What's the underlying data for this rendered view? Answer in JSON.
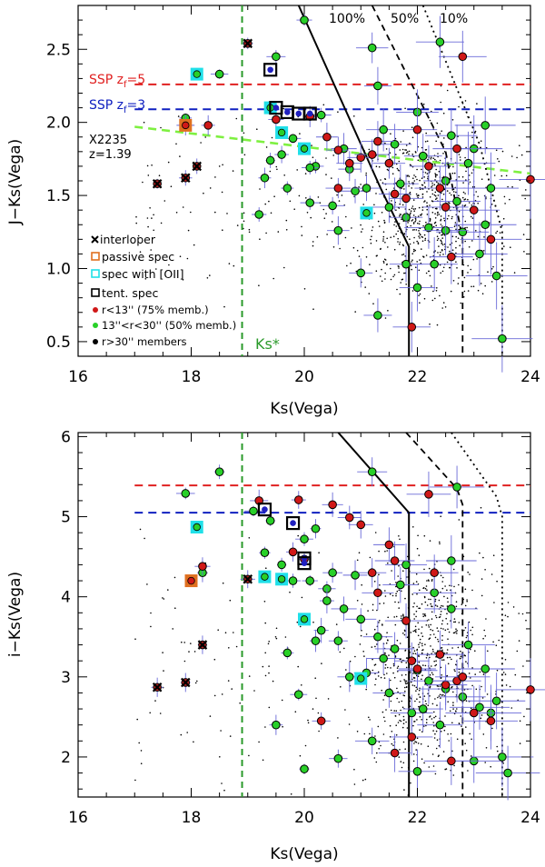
{
  "figure": {
    "label": "Two-panel colour-magnitude diagram of the X2235 cluster field"
  },
  "colors": {
    "red": "#d01818",
    "green": "#28d028",
    "cyan": "#20e0e8",
    "orange": "#e07020",
    "blue_err": "#6a6ad8",
    "ssp5": "#e02020",
    "ssp3": "#1020c0",
    "seq": "#7ef040",
    "kslim": "#2a9a2a"
  },
  "chart_data": [
    {
      "type": "scatter",
      "panel": "top",
      "xlabel": "Ks(Vega)",
      "ylabel": "J−Ks(Vega)",
      "xlim": [
        16,
        24
      ],
      "ylim": [
        0.4,
        2.8
      ],
      "xticks": [
        "16",
        "18",
        "20",
        "22",
        "24"
      ],
      "yticks": [
        "0.5",
        "1.0",
        "1.5",
        "2.0",
        "2.5"
      ],
      "completeness_labels": [
        "100%",
        "50%",
        "10%"
      ],
      "ssp_lines": [
        {
          "label": "SSP z_f=5",
          "y": 2.26,
          "color": "#e02020"
        },
        {
          "label": "SSP z_f=3",
          "y": 2.09,
          "color": "#1020c0"
        }
      ],
      "red_sequence": {
        "x": [
          17.0,
          24.0
        ],
        "y": [
          1.97,
          1.65
        ]
      },
      "cluster_label": [
        "X2235",
        "z=1.39"
      ],
      "ks_limit": {
        "x": 18.9,
        "label": "Ks*"
      },
      "completeness_100": {
        "x": [
          19.9,
          21.35,
          21.85,
          21.85
        ],
        "y": [
          2.8,
          1.55,
          1.15,
          0.4
        ]
      },
      "completeness_50": {
        "x": [
          21.2,
          22.5,
          22.8,
          22.8
        ],
        "y": [
          2.8,
          1.8,
          1.2,
          0.4
        ]
      },
      "completeness_10": {
        "x": [
          22.1,
          23.1,
          23.5,
          23.5
        ],
        "y": [
          2.8,
          1.85,
          1.25,
          0.4
        ]
      },
      "legend": [
        "interloper",
        "passive spec",
        "spec with [OII]",
        "tent. spec",
        "r<13'' (75% memb.)",
        "13''<r<30'' (50% memb.)",
        "r>30'' members"
      ],
      "red_points": [
        [
          17.9,
          1.98
        ],
        [
          18.3,
          1.98
        ],
        [
          19.5,
          2.02
        ],
        [
          20.1,
          2.04
        ],
        [
          20.4,
          1.9
        ],
        [
          20.6,
          1.81
        ],
        [
          20.8,
          1.72
        ],
        [
          21.0,
          1.76
        ],
        [
          21.2,
          1.78
        ],
        [
          21.3,
          1.87
        ],
        [
          21.5,
          1.72
        ],
        [
          21.6,
          1.51
        ],
        [
          21.8,
          1.48
        ],
        [
          21.9,
          0.6
        ],
        [
          22.0,
          1.95
        ],
        [
          22.2,
          1.7
        ],
        [
          22.4,
          1.55
        ],
        [
          22.5,
          1.42
        ],
        [
          22.6,
          1.08
        ],
        [
          22.8,
          2.45
        ],
        [
          23.0,
          1.4
        ],
        [
          23.3,
          1.2
        ],
        [
          24.0,
          1.61
        ],
        [
          20.6,
          1.55
        ],
        [
          22.7,
          1.82
        ]
      ],
      "green_points": [
        [
          17.9,
          2.03
        ],
        [
          18.5,
          2.33
        ],
        [
          19.6,
          1.78
        ],
        [
          19.5,
          2.45
        ],
        [
          19.3,
          1.62
        ],
        [
          19.7,
          1.55
        ],
        [
          19.8,
          1.89
        ],
        [
          20.0,
          2.7
        ],
        [
          20.2,
          1.7
        ],
        [
          20.1,
          1.45
        ],
        [
          20.3,
          2.05
        ],
        [
          20.5,
          1.43
        ],
        [
          20.6,
          1.26
        ],
        [
          20.7,
          1.82
        ],
        [
          20.8,
          1.68
        ],
        [
          20.9,
          1.53
        ],
        [
          21.0,
          0.97
        ],
        [
          21.1,
          1.55
        ],
        [
          21.2,
          2.51
        ],
        [
          21.3,
          2.25
        ],
        [
          21.4,
          1.95
        ],
        [
          21.5,
          1.42
        ],
        [
          21.6,
          1.85
        ],
        [
          21.7,
          1.58
        ],
        [
          21.8,
          1.35
        ],
        [
          22.0,
          2.07
        ],
        [
          22.1,
          1.77
        ],
        [
          22.2,
          1.28
        ],
        [
          22.3,
          1.03
        ],
        [
          22.4,
          2.55
        ],
        [
          22.5,
          1.6
        ],
        [
          22.6,
          1.91
        ],
        [
          22.7,
          1.46
        ],
        [
          22.8,
          1.25
        ],
        [
          22.9,
          1.72
        ],
        [
          23.0,
          1.82
        ],
        [
          23.1,
          1.1
        ],
        [
          23.2,
          1.98
        ],
        [
          23.3,
          1.55
        ],
        [
          23.4,
          0.95
        ],
        [
          23.5,
          0.52
        ],
        [
          22.0,
          0.87
        ],
        [
          21.3,
          0.68
        ],
        [
          22.5,
          1.26
        ],
        [
          21.8,
          1.03
        ],
        [
          23.2,
          1.3
        ],
        [
          19.2,
          1.37
        ],
        [
          19.4,
          1.74
        ],
        [
          20.1,
          1.69
        ]
      ],
      "interlopers": [
        [
          17.4,
          1.58
        ],
        [
          17.9,
          1.62
        ],
        [
          18.1,
          1.7
        ],
        [
          19.0,
          2.54
        ]
      ],
      "passive_spec": [
        [
          17.9,
          1.98
        ]
      ],
      "oii_spec": [
        [
          18.1,
          2.33
        ],
        [
          19.4,
          2.1
        ],
        [
          19.6,
          1.93
        ],
        [
          20.0,
          1.82
        ],
        [
          21.1,
          1.38
        ]
      ],
      "tent_spec": [
        [
          19.4,
          2.36
        ],
        [
          19.7,
          2.07
        ],
        [
          19.9,
          2.06
        ],
        [
          20.1,
          2.06
        ],
        [
          19.5,
          2.1
        ]
      ]
    },
    {
      "type": "scatter",
      "panel": "bottom",
      "xlabel": "Ks(Vega)",
      "ylabel": "i−Ks(Vega)",
      "xlim": [
        16,
        24
      ],
      "ylim": [
        1.5,
        6.05
      ],
      "xticks": [
        "16",
        "18",
        "20",
        "22",
        "24"
      ],
      "yticks": [
        "2",
        "3",
        "4",
        "5",
        "6"
      ],
      "ssp_lines": [
        {
          "y": 5.39,
          "color": "#e02020"
        },
        {
          "y": 5.05,
          "color": "#1020c0"
        }
      ],
      "ks_limit": {
        "x": 18.9
      },
      "completeness_100": {
        "x": [
          20.6,
          21.85,
          21.85
        ],
        "y": [
          6.05,
          5.05,
          1.5
        ]
      },
      "completeness_50": {
        "x": [
          21.8,
          22.7,
          22.8,
          22.8
        ],
        "y": [
          6.05,
          5.35,
          5.15,
          1.5
        ]
      },
      "completeness_10": {
        "x": [
          22.6,
          23.4,
          23.5,
          23.5
        ],
        "y": [
          6.05,
          5.25,
          5.0,
          1.5
        ]
      },
      "red_points": [
        [
          18.2,
          4.38
        ],
        [
          19.2,
          5.2
        ],
        [
          19.8,
          4.56
        ],
        [
          19.9,
          5.21
        ],
        [
          20.0,
          4.47
        ],
        [
          20.5,
          5.15
        ],
        [
          20.8,
          4.99
        ],
        [
          21.0,
          4.9
        ],
        [
          21.2,
          4.3
        ],
        [
          21.3,
          4.05
        ],
        [
          21.5,
          4.65
        ],
        [
          21.6,
          4.45
        ],
        [
          21.8,
          3.7
        ],
        [
          21.9,
          3.2
        ],
        [
          22.0,
          3.1
        ],
        [
          22.2,
          5.28
        ],
        [
          22.3,
          4.3
        ],
        [
          22.4,
          3.28
        ],
        [
          22.5,
          2.9
        ],
        [
          22.7,
          2.95
        ],
        [
          22.8,
          3.0
        ],
        [
          23.0,
          2.55
        ],
        [
          23.3,
          2.45
        ],
        [
          24.0,
          2.84
        ],
        [
          20.3,
          2.45
        ],
        [
          21.9,
          2.25
        ],
        [
          21.6,
          2.05
        ],
        [
          22.6,
          1.95
        ]
      ],
      "green_points": [
        [
          17.9,
          5.29
        ],
        [
          18.5,
          5.56
        ],
        [
          18.2,
          4.3
        ],
        [
          19.1,
          5.07
        ],
        [
          19.3,
          4.55
        ],
        [
          19.4,
          4.95
        ],
        [
          19.6,
          4.4
        ],
        [
          19.7,
          3.3
        ],
        [
          19.8,
          4.2
        ],
        [
          19.9,
          2.78
        ],
        [
          20.0,
          4.72
        ],
        [
          20.1,
          4.2
        ],
        [
          20.2,
          4.85
        ],
        [
          20.3,
          3.58
        ],
        [
          20.4,
          4.1
        ],
        [
          20.5,
          4.3
        ],
        [
          20.6,
          3.45
        ],
        [
          20.7,
          3.85
        ],
        [
          20.8,
          3.0
        ],
        [
          20.9,
          4.27
        ],
        [
          21.0,
          3.72
        ],
        [
          21.1,
          3.05
        ],
        [
          21.2,
          5.56
        ],
        [
          21.3,
          3.5
        ],
        [
          21.4,
          3.23
        ],
        [
          21.5,
          2.8
        ],
        [
          21.6,
          3.35
        ],
        [
          21.7,
          4.15
        ],
        [
          21.8,
          4.4
        ],
        [
          21.9,
          2.55
        ],
        [
          22.0,
          3.08
        ],
        [
          22.1,
          2.6
        ],
        [
          22.2,
          2.95
        ],
        [
          22.3,
          4.05
        ],
        [
          22.4,
          2.4
        ],
        [
          22.5,
          2.85
        ],
        [
          22.6,
          3.85
        ],
        [
          22.7,
          5.37
        ],
        [
          22.8,
          2.75
        ],
        [
          22.9,
          3.4
        ],
        [
          23.0,
          1.95
        ],
        [
          23.1,
          2.62
        ],
        [
          23.2,
          3.1
        ],
        [
          23.3,
          2.55
        ],
        [
          23.4,
          2.7
        ],
        [
          23.5,
          2.0
        ],
        [
          23.6,
          1.8
        ],
        [
          22.0,
          1.82
        ],
        [
          21.2,
          2.2
        ],
        [
          20.6,
          1.98
        ],
        [
          19.5,
          2.4
        ],
        [
          20.0,
          1.85
        ],
        [
          20.2,
          3.45
        ],
        [
          20.4,
          3.95
        ],
        [
          22.6,
          4.45
        ]
      ],
      "interlopers": [
        [
          17.4,
          2.87
        ],
        [
          17.9,
          2.93
        ],
        [
          18.2,
          3.4
        ],
        [
          19.0,
          4.22
        ]
      ],
      "passive_spec": [
        [
          18.0,
          4.2
        ]
      ],
      "oii_spec": [
        [
          18.1,
          4.87
        ],
        [
          19.3,
          4.25
        ],
        [
          19.6,
          4.22
        ],
        [
          20.0,
          3.72
        ],
        [
          21.0,
          2.98
        ]
      ],
      "tent_spec": [
        [
          19.3,
          5.09
        ],
        [
          19.8,
          4.92
        ],
        [
          20.0,
          4.48
        ],
        [
          20.0,
          4.42
        ]
      ]
    }
  ]
}
